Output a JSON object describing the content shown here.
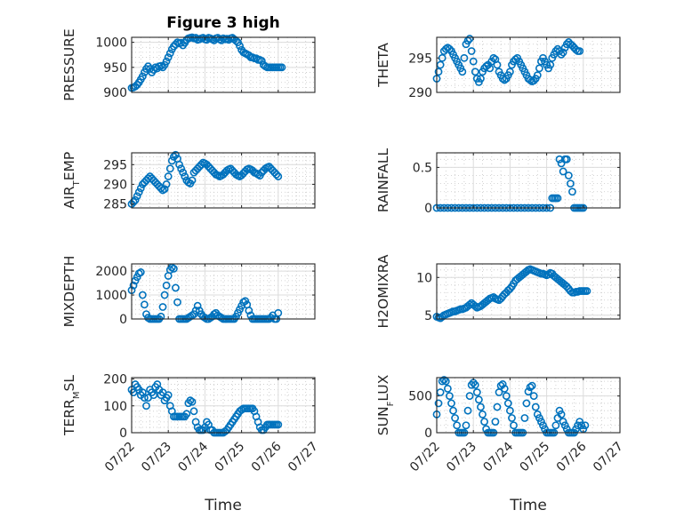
{
  "figure": {
    "title": "Figure 3 high"
  },
  "x_axis": {
    "label": "Time",
    "ticks": [
      "07/22",
      "07/23",
      "07/24",
      "07/25",
      "07/26",
      "07/27"
    ],
    "range": [
      "07/22",
      "07/27"
    ]
  },
  "colors": {
    "marker": "#0072BD",
    "axis": "#262626",
    "grid": "#c8c8c8",
    "background": "#ffffff"
  },
  "chart_data": [
    {
      "type": "scatter",
      "title": "Figure 3 high",
      "ylabel": "PRESSURE",
      "ylim": [
        900,
        1010
      ],
      "yticks": [
        "900",
        "950",
        "1000"
      ],
      "x_days": [
        0.0,
        0.05,
        0.1,
        0.15,
        0.2,
        0.25,
        0.3,
        0.35,
        0.4,
        0.45,
        0.5,
        0.55,
        0.6,
        0.65,
        0.7,
        0.75,
        0.8,
        0.85,
        0.9,
        0.95,
        1.0,
        1.05,
        1.1,
        1.15,
        1.2,
        1.25,
        1.3,
        1.35,
        1.4,
        1.45,
        1.5,
        1.55,
        1.6,
        1.65,
        1.7,
        1.75,
        1.8,
        1.85,
        1.9,
        1.95,
        2.0,
        2.05,
        2.1,
        2.15,
        2.2,
        2.25,
        2.3,
        2.35,
        2.4,
        2.45,
        2.5,
        2.55,
        2.6,
        2.65,
        2.7,
        2.75,
        2.8,
        2.85,
        2.9,
        2.95,
        3.0,
        3.05,
        3.1,
        3.15,
        3.2,
        3.25,
        3.3,
        3.35,
        3.4,
        3.45,
        3.5,
        3.55,
        3.6,
        3.65,
        3.7,
        3.75,
        3.8,
        3.85,
        3.9,
        3.95,
        4.0,
        4.05,
        4.1
      ],
      "values": [
        909,
        910,
        912,
        915,
        920,
        926,
        932,
        940,
        947,
        952,
        947,
        940,
        945,
        950,
        948,
        952,
        953,
        950,
        955,
        962,
        970,
        978,
        986,
        992,
        996,
        1000,
        998,
        999,
        994,
        999,
        1005,
        1008,
        1009,
        1010,
        1008,
        1009,
        1005,
        1006,
        1008,
        1009,
        1006,
        1005,
        1009,
        1008,
        1006,
        1004,
        1008,
        1009,
        1006,
        1004,
        1008,
        1006,
        1007,
        1005,
        1008,
        1009,
        1006,
        1003,
        1000,
        993,
        985,
        980,
        978,
        976,
        974,
        970,
        970,
        968,
        968,
        965,
        965,
        963,
        955,
        952,
        950,
        950,
        950,
        950,
        950,
        950,
        950,
        950,
        950
      ]
    },
    {
      "type": "scatter",
      "ylabel": "THETA",
      "ylim": [
        290,
        298
      ],
      "yticks": [
        "290",
        "295"
      ],
      "x_days": [
        0.0,
        0.05,
        0.1,
        0.15,
        0.2,
        0.25,
        0.3,
        0.35,
        0.4,
        0.45,
        0.5,
        0.55,
        0.6,
        0.65,
        0.7,
        0.75,
        0.8,
        0.85,
        0.9,
        0.95,
        1.0,
        1.05,
        1.1,
        1.15,
        1.2,
        1.25,
        1.3,
        1.35,
        1.4,
        1.45,
        1.5,
        1.55,
        1.6,
        1.65,
        1.7,
        1.75,
        1.8,
        1.85,
        1.9,
        1.95,
        2.0,
        2.05,
        2.1,
        2.15,
        2.2,
        2.25,
        2.3,
        2.35,
        2.4,
        2.45,
        2.5,
        2.55,
        2.6,
        2.65,
        2.7,
        2.75,
        2.8,
        2.85,
        2.9,
        2.95,
        3.0,
        3.05,
        3.1,
        3.15,
        3.2,
        3.25,
        3.3,
        3.35,
        3.4,
        3.45,
        3.5,
        3.55,
        3.6,
        3.65,
        3.7,
        3.75,
        3.8,
        3.85,
        3.9
      ],
      "values": [
        292,
        293,
        294,
        295,
        296,
        296.3,
        296.5,
        296.3,
        296,
        295.5,
        295,
        294.5,
        294,
        293.5,
        293,
        295,
        297,
        297.5,
        297.8,
        296,
        294.5,
        293,
        292,
        291.5,
        292,
        293,
        293.5,
        293.8,
        294,
        293.5,
        294.5,
        295,
        294.8,
        294,
        293,
        292.5,
        292,
        291.8,
        292,
        292.5,
        293,
        294,
        294.5,
        294.8,
        295,
        294.5,
        294,
        293.5,
        293,
        292.5,
        292,
        291.8,
        291.6,
        291.7,
        292,
        292.5,
        293.5,
        294.5,
        295,
        294.5,
        294,
        293.5,
        294,
        295,
        295.5,
        296,
        296.3,
        296,
        295.5,
        295.8,
        296.5,
        297,
        297.3,
        297,
        296.8,
        296.5,
        296.2,
        296,
        296
      ]
    },
    {
      "type": "scatter",
      "ylabel": "AIR_TEMP",
      "ylim": [
        284,
        298
      ],
      "yticks": [
        "285",
        "290",
        "295"
      ],
      "x_days": [
        0.0,
        0.05,
        0.1,
        0.15,
        0.2,
        0.25,
        0.3,
        0.35,
        0.4,
        0.45,
        0.5,
        0.55,
        0.6,
        0.65,
        0.7,
        0.75,
        0.8,
        0.85,
        0.9,
        0.95,
        1.0,
        1.05,
        1.1,
        1.15,
        1.2,
        1.25,
        1.3,
        1.35,
        1.4,
        1.45,
        1.5,
        1.55,
        1.6,
        1.65,
        1.7,
        1.75,
        1.8,
        1.85,
        1.9,
        1.95,
        2.0,
        2.05,
        2.1,
        2.15,
        2.2,
        2.25,
        2.3,
        2.35,
        2.4,
        2.45,
        2.5,
        2.55,
        2.6,
        2.65,
        2.7,
        2.75,
        2.8,
        2.85,
        2.9,
        2.95,
        3.0,
        3.05,
        3.1,
        3.15,
        3.2,
        3.25,
        3.3,
        3.35,
        3.4,
        3.45,
        3.5,
        3.55,
        3.6,
        3.65,
        3.7,
        3.75,
        3.8,
        3.85,
        3.9,
        3.95,
        4.0
      ],
      "values": [
        285,
        285.5,
        286,
        287,
        288,
        289,
        290,
        290.5,
        291,
        291.5,
        292,
        291.5,
        291,
        290.5,
        290,
        289.5,
        289,
        288.5,
        288.8,
        290,
        292,
        294,
        296,
        297,
        297.5,
        296.5,
        295,
        294,
        293,
        292,
        291,
        290.5,
        290.2,
        291,
        293,
        293.5,
        294,
        294.5,
        295,
        295.5,
        295.3,
        295,
        294.5,
        294,
        293.5,
        293,
        292.5,
        292.3,
        292,
        292.2,
        292.5,
        293,
        293.5,
        293.8,
        294,
        293.5,
        293,
        292.5,
        292.2,
        292,
        292.3,
        292.8,
        293.3,
        293.8,
        294,
        293.8,
        293.5,
        293,
        292.8,
        292.5,
        292.2,
        293,
        293.5,
        294,
        294.3,
        294.5,
        294,
        293.5,
        293,
        292.5,
        292
      ]
    },
    {
      "type": "scatter",
      "ylabel": "RAINFALL",
      "ylim": [
        0,
        0.68
      ],
      "yticks": [
        "0",
        "0.5"
      ],
      "x_days": [
        0.0,
        0.1,
        0.2,
        0.3,
        0.4,
        0.5,
        0.6,
        0.7,
        0.8,
        0.9,
        1.0,
        1.1,
        1.2,
        1.3,
        1.4,
        1.5,
        1.6,
        1.7,
        1.8,
        1.9,
        2.0,
        2.1,
        2.2,
        2.3,
        2.4,
        2.5,
        2.6,
        2.7,
        2.8,
        2.9,
        3.0,
        3.1,
        3.15,
        3.2,
        3.25,
        3.3,
        3.35,
        3.4,
        3.45,
        3.5,
        3.55,
        3.6,
        3.65,
        3.7,
        3.75,
        3.8,
        3.85,
        3.9,
        3.95,
        4.0
      ],
      "values": [
        0,
        0,
        0,
        0,
        0,
        0,
        0,
        0,
        0,
        0,
        0,
        0,
        0,
        0,
        0,
        0,
        0,
        0,
        0,
        0,
        0,
        0,
        0,
        0,
        0,
        0,
        0,
        0,
        0,
        0,
        0,
        0,
        0.12,
        0.12,
        0.12,
        0.12,
        0.6,
        0.55,
        0.45,
        0.6,
        0.6,
        0.4,
        0.3,
        0.2,
        0,
        0,
        0,
        0,
        0,
        0
      ]
    },
    {
      "type": "scatter",
      "ylabel": "MIXDEPTH",
      "ylim": [
        0,
        2300
      ],
      "yticks": [
        "0",
        "1000",
        "2000"
      ],
      "x_days": [
        0.0,
        0.05,
        0.1,
        0.15,
        0.2,
        0.25,
        0.3,
        0.35,
        0.4,
        0.45,
        0.5,
        0.55,
        0.6,
        0.65,
        0.7,
        0.75,
        0.8,
        0.85,
        0.9,
        0.95,
        1.0,
        1.05,
        1.1,
        1.15,
        1.2,
        1.25,
        1.3,
        1.35,
        1.4,
        1.45,
        1.5,
        1.55,
        1.6,
        1.65,
        1.7,
        1.75,
        1.8,
        1.85,
        1.9,
        1.95,
        2.0,
        2.05,
        2.1,
        2.15,
        2.2,
        2.25,
        2.3,
        2.35,
        2.4,
        2.45,
        2.5,
        2.55,
        2.6,
        2.65,
        2.7,
        2.75,
        2.8,
        2.85,
        2.9,
        2.95,
        3.0,
        3.05,
        3.1,
        3.15,
        3.2,
        3.25,
        3.3,
        3.35,
        3.4,
        3.45,
        3.5,
        3.55,
        3.6,
        3.65,
        3.7,
        3.75,
        3.8,
        3.85,
        3.9,
        3.95,
        4.0
      ],
      "values": [
        1200,
        1400,
        1600,
        1750,
        1900,
        1950,
        1000,
        600,
        200,
        50,
        0,
        0,
        0,
        0,
        0,
        0,
        100,
        500,
        1000,
        1400,
        1800,
        2050,
        2150,
        2100,
        1300,
        700,
        0,
        0,
        0,
        0,
        0,
        50,
        100,
        150,
        200,
        350,
        550,
        350,
        200,
        100,
        50,
        0,
        0,
        50,
        100,
        200,
        250,
        150,
        100,
        50,
        0,
        0,
        0,
        0,
        0,
        0,
        0,
        100,
        250,
        400,
        550,
        700,
        750,
        600,
        350,
        150,
        0,
        0,
        0,
        0,
        0,
        0,
        0,
        0,
        0,
        0,
        50,
        150,
        0,
        0,
        250
      ]
    },
    {
      "type": "scatter",
      "ylabel": "H2OMIXRA",
      "ylim": [
        4.5,
        11.8
      ],
      "yticks": [
        "5",
        "10"
      ],
      "x_days": [
        0.0,
        0.05,
        0.1,
        0.15,
        0.2,
        0.25,
        0.3,
        0.35,
        0.4,
        0.45,
        0.5,
        0.55,
        0.6,
        0.65,
        0.7,
        0.75,
        0.8,
        0.85,
        0.9,
        0.95,
        1.0,
        1.05,
        1.1,
        1.15,
        1.2,
        1.25,
        1.3,
        1.35,
        1.4,
        1.45,
        1.5,
        1.55,
        1.6,
        1.65,
        1.7,
        1.75,
        1.8,
        1.85,
        1.9,
        1.95,
        2.0,
        2.05,
        2.1,
        2.15,
        2.2,
        2.25,
        2.3,
        2.35,
        2.4,
        2.45,
        2.5,
        2.55,
        2.6,
        2.65,
        2.7,
        2.75,
        2.8,
        2.85,
        2.9,
        2.95,
        3.0,
        3.05,
        3.1,
        3.15,
        3.2,
        3.25,
        3.3,
        3.35,
        3.4,
        3.45,
        3.5,
        3.55,
        3.6,
        3.65,
        3.7,
        3.75,
        3.8,
        3.85,
        3.9,
        3.95,
        4.0,
        4.05,
        4.1
      ],
      "values": [
        4.8,
        4.7,
        4.6,
        4.8,
        5,
        5.1,
        5.2,
        5.3,
        5.4,
        5.5,
        5.5,
        5.6,
        5.7,
        5.8,
        5.8,
        5.9,
        6,
        6.2,
        6.4,
        6.6,
        6.4,
        6.2,
        6,
        6.1,
        6.2,
        6.4,
        6.6,
        6.8,
        7,
        7.2,
        7.3,
        7.4,
        7.2,
        7.1,
        7,
        7.2,
        7.5,
        7.8,
        8,
        8.3,
        8.5,
        8.8,
        9.2,
        9.6,
        9.8,
        10,
        10.2,
        10.4,
        10.6,
        10.8,
        11,
        11.1,
        11,
        10.9,
        10.8,
        10.7,
        10.6,
        10.5,
        10.5,
        10.4,
        10.3,
        10.4,
        10.6,
        10.5,
        10.2,
        10,
        9.8,
        9.6,
        9.4,
        9.2,
        9,
        8.8,
        8.5,
        8.2,
        8,
        8,
        8.1,
        8.1,
        8.2,
        8.2,
        8.2,
        8.2,
        8.2
      ]
    },
    {
      "type": "scatter",
      "ylabel": "TERR_MSL",
      "ylim": [
        0,
        205
      ],
      "yticks": [
        "0",
        "100",
        "200"
      ],
      "x_days": [
        0.0,
        0.05,
        0.1,
        0.15,
        0.2,
        0.25,
        0.3,
        0.35,
        0.4,
        0.45,
        0.5,
        0.55,
        0.6,
        0.65,
        0.7,
        0.75,
        0.8,
        0.85,
        0.9,
        0.95,
        1.0,
        1.05,
        1.1,
        1.15,
        1.2,
        1.25,
        1.3,
        1.35,
        1.4,
        1.45,
        1.5,
        1.55,
        1.6,
        1.65,
        1.7,
        1.75,
        1.8,
        1.85,
        1.9,
        1.95,
        2.0,
        2.05,
        2.1,
        2.15,
        2.2,
        2.25,
        2.3,
        2.35,
        2.4,
        2.45,
        2.5,
        2.55,
        2.6,
        2.65,
        2.7,
        2.75,
        2.8,
        2.85,
        2.9,
        2.95,
        3.0,
        3.05,
        3.1,
        3.15,
        3.2,
        3.25,
        3.3,
        3.35,
        3.4,
        3.45,
        3.5,
        3.55,
        3.6,
        3.65,
        3.7,
        3.75,
        3.8,
        3.85,
        3.9,
        3.95,
        4.0
      ],
      "values": [
        160,
        150,
        180,
        170,
        160,
        140,
        150,
        130,
        100,
        130,
        160,
        150,
        140,
        170,
        180,
        160,
        140,
        150,
        120,
        130,
        140,
        100,
        80,
        60,
        60,
        60,
        60,
        60,
        60,
        60,
        70,
        110,
        120,
        115,
        80,
        40,
        20,
        10,
        10,
        10,
        20,
        40,
        30,
        10,
        10,
        0,
        0,
        0,
        0,
        0,
        0,
        5,
        10,
        20,
        30,
        40,
        50,
        60,
        70,
        80,
        85,
        90,
        90,
        90,
        90,
        90,
        90,
        80,
        60,
        40,
        20,
        10,
        10,
        20,
        30,
        30,
        30,
        30,
        30,
        30,
        30
      ]
    },
    {
      "type": "scatter",
      "ylabel": "SUN_FLUX",
      "ylim": [
        0,
        750
      ],
      "yticks": [
        "0",
        "500"
      ],
      "x_days": [
        0.0,
        0.05,
        0.1,
        0.15,
        0.2,
        0.25,
        0.3,
        0.35,
        0.4,
        0.45,
        0.5,
        0.55,
        0.6,
        0.65,
        0.7,
        0.75,
        0.8,
        0.85,
        0.9,
        0.95,
        1.0,
        1.05,
        1.1,
        1.15,
        1.2,
        1.25,
        1.3,
        1.35,
        1.4,
        1.45,
        1.5,
        1.55,
        1.6,
        1.65,
        1.7,
        1.75,
        1.8,
        1.85,
        1.9,
        1.95,
        2.0,
        2.05,
        2.1,
        2.15,
        2.2,
        2.25,
        2.3,
        2.35,
        2.4,
        2.45,
        2.5,
        2.55,
        2.6,
        2.65,
        2.7,
        2.75,
        2.8,
        2.85,
        2.9,
        2.95,
        3.0,
        3.05,
        3.1,
        3.15,
        3.2,
        3.25,
        3.3,
        3.35,
        3.4,
        3.45,
        3.5,
        3.55,
        3.6,
        3.65,
        3.7,
        3.75,
        3.8,
        3.85,
        3.9,
        3.95,
        4.0,
        4.05
      ],
      "values": [
        250,
        400,
        550,
        700,
        720,
        700,
        600,
        500,
        400,
        300,
        200,
        100,
        0,
        0,
        0,
        0,
        100,
        300,
        500,
        650,
        680,
        650,
        550,
        450,
        350,
        250,
        150,
        50,
        0,
        0,
        0,
        0,
        150,
        350,
        550,
        640,
        660,
        600,
        500,
        400,
        300,
        200,
        100,
        0,
        0,
        0,
        0,
        0,
        200,
        400,
        560,
        620,
        640,
        500,
        350,
        250,
        200,
        150,
        100,
        50,
        0,
        0,
        0,
        0,
        0,
        100,
        200,
        300,
        250,
        150,
        100,
        50,
        0,
        0,
        0,
        0,
        50,
        100,
        150,
        100,
        50,
        100
      ]
    }
  ]
}
